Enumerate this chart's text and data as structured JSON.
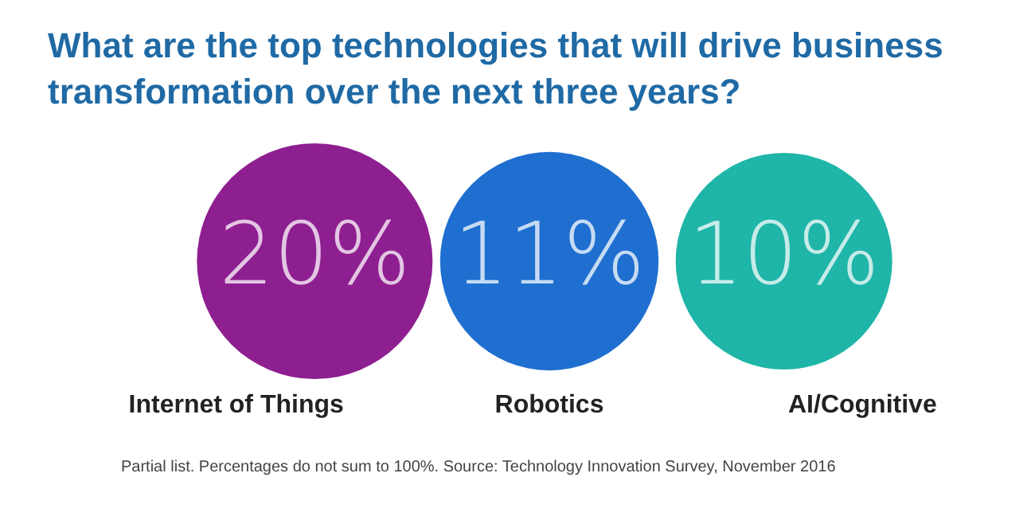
{
  "chart_data": {
    "type": "other",
    "title": "What are the top technologies that will drive business transformation over the next three years?",
    "categories": [
      "Internet of Things",
      "Robotics",
      "AI/Cognitive"
    ],
    "values": [
      20,
      11,
      10
    ],
    "value_labels": [
      "20%",
      "11%",
      "10%"
    ],
    "colors": [
      "#8e1f91",
      "#1f6fd0",
      "#1fb5a8"
    ],
    "annotations": [
      "Partial list. Percentages do not sum to 100%. Source: Technology Innovation Survey, November 2016"
    ]
  }
}
